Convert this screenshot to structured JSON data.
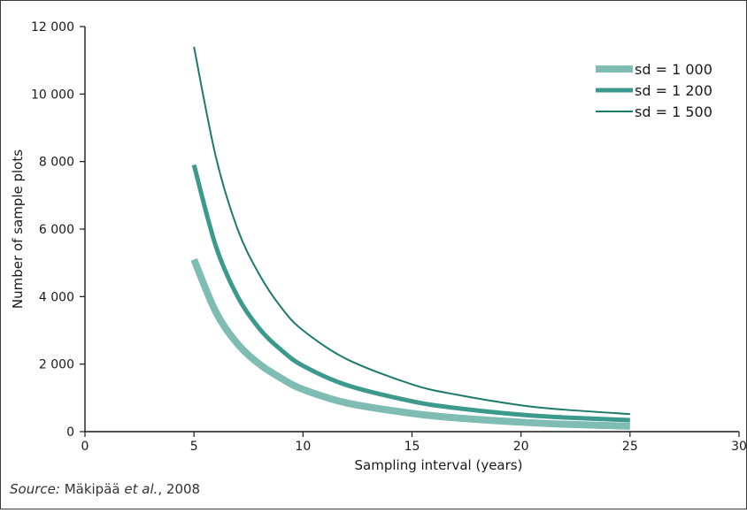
{
  "chart_data": {
    "type": "line",
    "title": "",
    "xlabel": "Sampling interval (years)",
    "ylabel": "Number of sample plots",
    "xlim": [
      0,
      30
    ],
    "ylim": [
      0,
      12000
    ],
    "x_ticks": [
      0,
      5,
      10,
      15,
      20,
      25,
      30
    ],
    "x_tick_labels": [
      "0",
      "5",
      "10",
      "15",
      "20",
      "25",
      "30"
    ],
    "y_ticks": [
      0,
      2000,
      4000,
      6000,
      8000,
      10000,
      12000
    ],
    "y_tick_labels": [
      "0",
      "2 000",
      "4 000",
      "6 000",
      "8 000",
      "10 000",
      "12 000"
    ],
    "grid": false,
    "legend_position": "top-right",
    "series": [
      {
        "name": "sd = 1 000",
        "color": "#7fbcb3",
        "x": [
          5,
          6,
          7,
          8,
          9,
          10,
          12,
          15,
          17,
          20,
          22,
          25
        ],
        "y": [
          5100,
          3550,
          2600,
          2000,
          1580,
          1250,
          850,
          540,
          410,
          280,
          220,
          160
        ]
      },
      {
        "name": "sd = 1 200",
        "color": "#3c9a8c",
        "x": [
          5,
          6,
          7,
          8,
          9,
          10,
          12,
          15,
          17,
          20,
          22,
          25
        ],
        "y": [
          7900,
          5500,
          4000,
          3050,
          2420,
          1950,
          1380,
          900,
          700,
          500,
          420,
          340
        ]
      },
      {
        "name": "sd = 1 500",
        "color": "#1c7a6d",
        "x": [
          5,
          6,
          7,
          8,
          9,
          10,
          12,
          15,
          17,
          20,
          22,
          25
        ],
        "y": [
          11400,
          8150,
          6000,
          4650,
          3680,
          3000,
          2150,
          1400,
          1100,
          780,
          650,
          520
        ]
      }
    ]
  },
  "source": {
    "prefix": "Source:",
    "author": "Mäkipää",
    "etal": "et al.",
    "suffix": ", 2008"
  }
}
